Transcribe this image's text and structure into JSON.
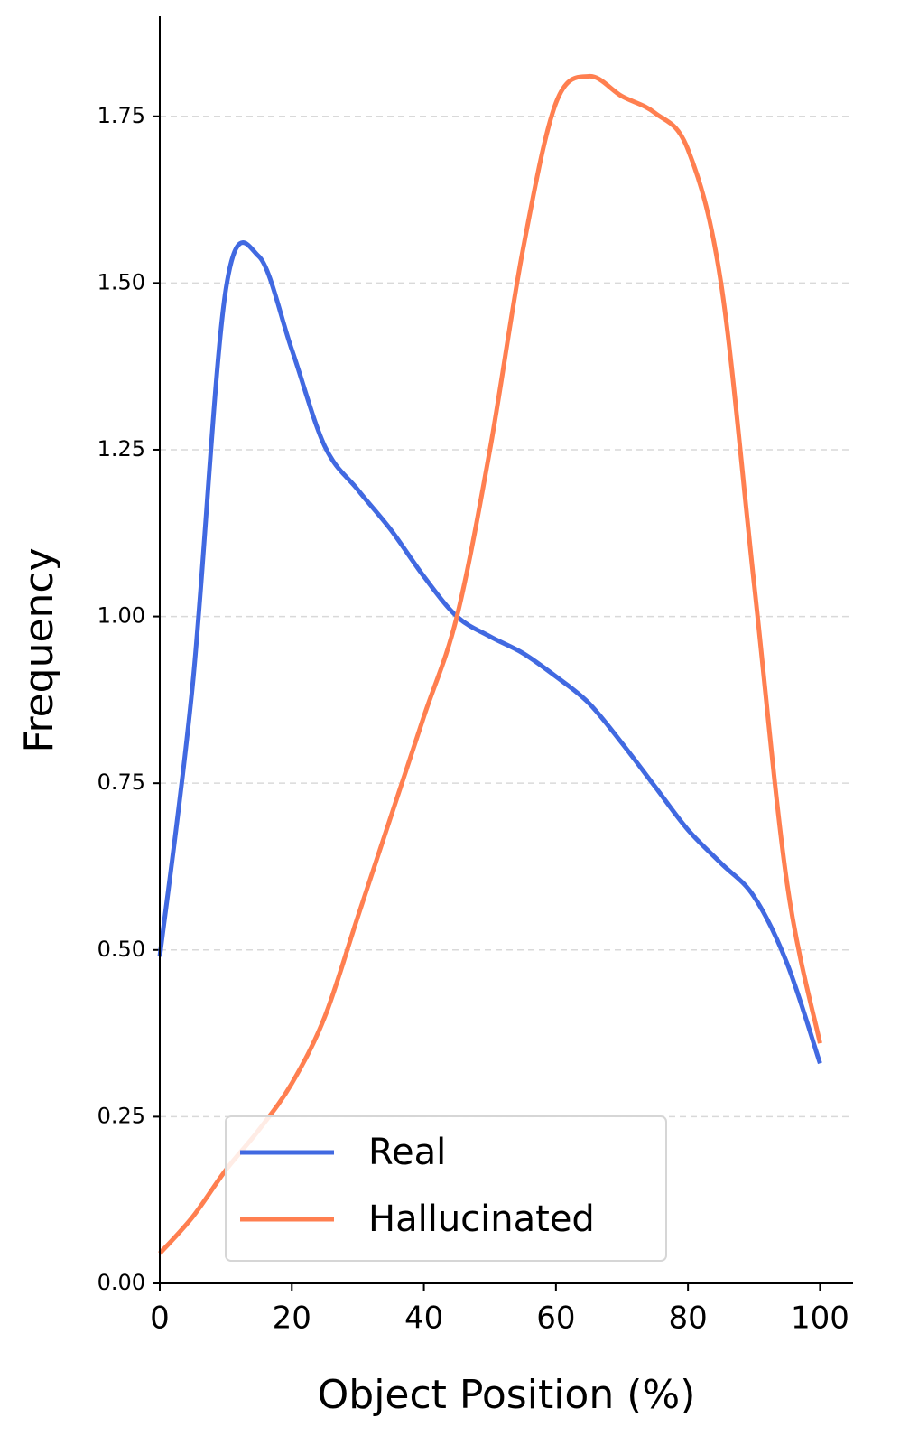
{
  "chart_data": {
    "type": "line",
    "x_label": "Object Position (%)",
    "y_label": "Frequency",
    "x": [
      0,
      5,
      10,
      15,
      20,
      25,
      30,
      35,
      40,
      45,
      50,
      55,
      60,
      65,
      70,
      75,
      80,
      85,
      90,
      95,
      100
    ],
    "series": [
      {
        "name": "Real",
        "color": "#4169e1",
        "values": [
          0.49,
          0.9,
          1.49,
          1.54,
          1.4,
          1.255,
          1.19,
          1.13,
          1.06,
          1.0,
          0.97,
          0.945,
          0.91,
          0.87,
          0.81,
          0.745,
          0.68,
          0.63,
          0.58,
          0.48,
          0.33
        ]
      },
      {
        "name": "Hallucinated",
        "color": "#ff7f50",
        "values": [
          0.045,
          0.1,
          0.17,
          0.23,
          0.3,
          0.4,
          0.55,
          0.7,
          0.85,
          1.0,
          1.25,
          1.55,
          1.77,
          1.81,
          1.78,
          1.755,
          1.7,
          1.5,
          1.05,
          0.6,
          0.36
        ]
      }
    ],
    "xlim": [
      0,
      105
    ],
    "ylim": [
      0,
      1.9
    ],
    "xticks": [
      0,
      20,
      40,
      60,
      80,
      100
    ],
    "yticks": [
      {
        "value": 0,
        "label": "0.00"
      },
      {
        "value": 0.25,
        "label": "0.25"
      },
      {
        "value": 0.5,
        "label": "0.50"
      },
      {
        "value": 0.75,
        "label": "0.75"
      },
      {
        "value": 1,
        "label": "1.00"
      },
      {
        "value": 1.25,
        "label": "1.25"
      },
      {
        "value": 1.5,
        "label": "1.50"
      },
      {
        "value": 1.75,
        "label": "1.75"
      }
    ],
    "grid": true,
    "legend": "lower center"
  }
}
